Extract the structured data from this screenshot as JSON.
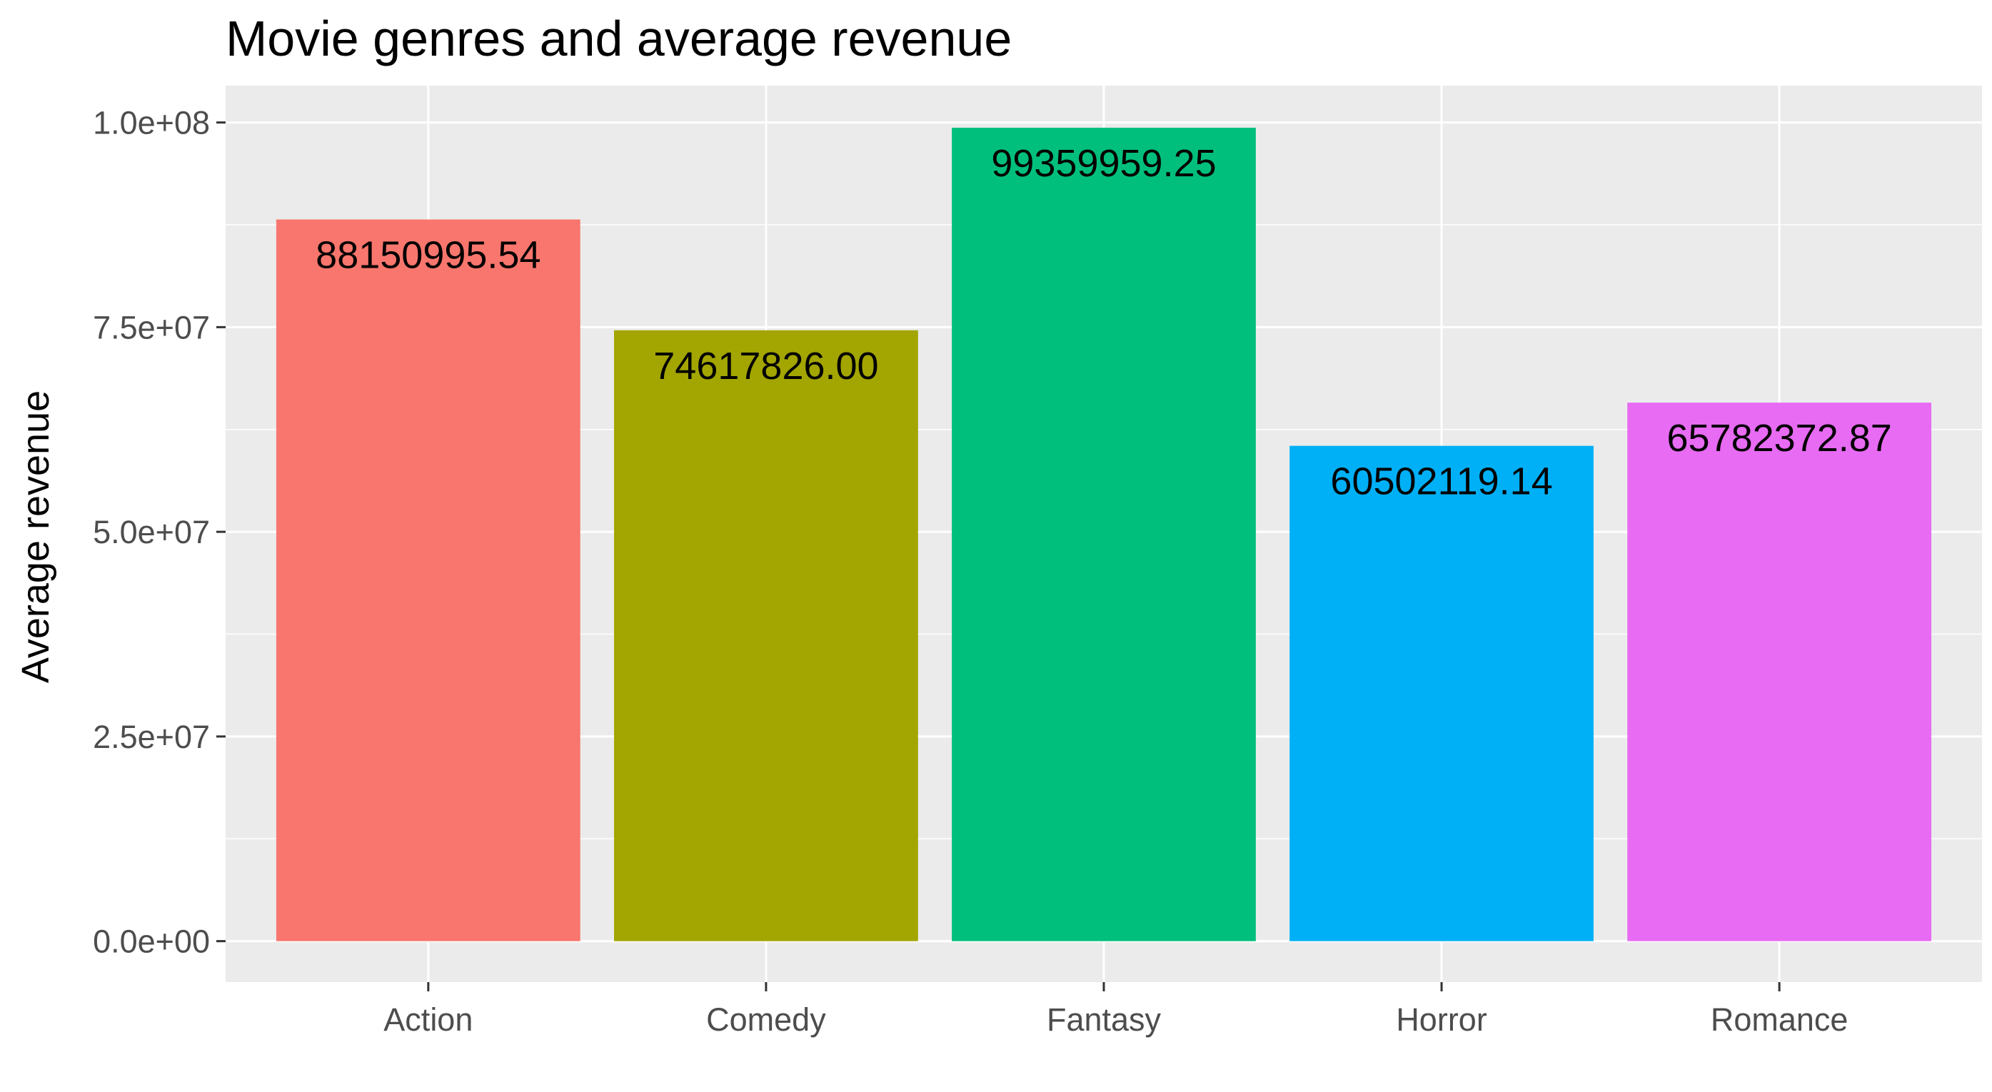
{
  "chart_data": {
    "type": "bar",
    "title": "Movie genres and average revenue",
    "xlabel": "",
    "ylabel": "Average revenue",
    "categories": [
      "Action",
      "Comedy",
      "Fantasy",
      "Horror",
      "Romance"
    ],
    "values": [
      88150995.54,
      74617826.0,
      99359959.25,
      60502119.14,
      65782372.87
    ],
    "data_labels": [
      "88150995.54",
      "74617826.00",
      "99359959.25",
      "60502119.14",
      "65782372.87"
    ],
    "bar_colors": [
      "#F8766D",
      "#A3A500",
      "#00BF7D",
      "#00B0F6",
      "#E76BF3"
    ],
    "y_ticks": [
      0,
      25000000,
      50000000,
      75000000,
      100000000
    ],
    "y_tick_labels": [
      "0.0e+00",
      "2.5e+07",
      "5.0e+07",
      "7.5e+07",
      "1.0e+08"
    ],
    "ylim": [
      -5000000,
      104500000
    ],
    "grid": true,
    "panel_background": "#EBEBEB",
    "grid_color": "#FFFFFF",
    "tick_color": "#333333",
    "legend": "none"
  }
}
